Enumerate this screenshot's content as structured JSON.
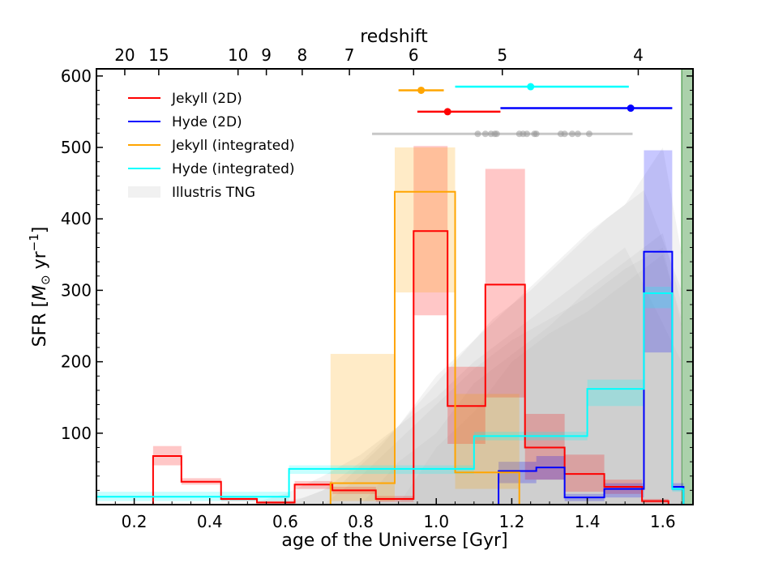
{
  "chart_data": {
    "type": "step",
    "title": "",
    "xlabel": "age of the Universe [Gyr]",
    "top_xlabel": "redshift",
    "ylabel": {
      "prefix": "SFR [",
      "unit_symbol": "M",
      "unit_sub": "⊙",
      "unit_rest": " yr",
      "unit_exp": "−1",
      "suffix": "]"
    },
    "xlim": [
      0.1,
      1.68
    ],
    "ylim": [
      0,
      610
    ],
    "x_ticks": [
      0.2,
      0.4,
      0.6,
      0.8,
      1.0,
      1.2,
      1.4,
      1.6
    ],
    "x_tick_labels": [
      "0.2",
      "0.4",
      "0.6",
      "0.8",
      "1.0",
      "1.2",
      "1.4",
      "1.6"
    ],
    "y_ticks": [
      100,
      200,
      300,
      400,
      500,
      600
    ],
    "y_tick_labels": [
      "100",
      "200",
      "300",
      "400",
      "500",
      "600"
    ],
    "redshift_ticks": [
      {
        "label": "20",
        "age": 0.175
      },
      {
        "label": "15",
        "age": 0.265
      },
      {
        "label": "10",
        "age": 0.475
      },
      {
        "label": "9",
        "age": 0.55
      },
      {
        "label": "8",
        "age": 0.645
      },
      {
        "label": "7",
        "age": 0.77
      },
      {
        "label": "6",
        "age": 0.94
      },
      {
        "label": "5",
        "age": 1.175
      },
      {
        "label": "4",
        "age": 1.535
      }
    ],
    "observed_shading": {
      "x_range": [
        1.65,
        1.68
      ],
      "color": "#2e8b2e"
    },
    "legend": [
      {
        "label": "Jekyll (2D)",
        "color": "#ff0000",
        "kind": "line"
      },
      {
        "label": "Hyde (2D)",
        "color": "#0000ff",
        "kind": "line"
      },
      {
        "label": "Jekyll (integrated)",
        "color": "#ffa500",
        "kind": "line"
      },
      {
        "label": "Hyde (integrated)",
        "color": "#00ffff",
        "kind": "line"
      },
      {
        "label": "Illustris TNG",
        "color": "#dddddd",
        "kind": "patch"
      }
    ],
    "series": [
      {
        "name": "Jekyll (2D)",
        "color": "#ff0000",
        "bins": [
          {
            "x0": 0.25,
            "x1": 0.325,
            "y": 68,
            "lo": 55,
            "hi": 82
          },
          {
            "x0": 0.325,
            "x1": 0.43,
            "y": 32,
            "lo": 28,
            "hi": 37
          },
          {
            "x0": 0.43,
            "x1": 0.525,
            "y": 8,
            "lo": 5,
            "hi": 12
          },
          {
            "x0": 0.525,
            "x1": 0.625,
            "y": 3,
            "lo": 1,
            "hi": 5
          },
          {
            "x0": 0.625,
            "x1": 0.725,
            "y": 28,
            "lo": 22,
            "hi": 33
          },
          {
            "x0": 0.725,
            "x1": 0.84,
            "y": 20,
            "lo": 15,
            "hi": 25
          },
          {
            "x0": 0.84,
            "x1": 0.94,
            "y": 8,
            "lo": 4,
            "hi": 12
          },
          {
            "x0": 0.94,
            "x1": 1.03,
            "y": 383,
            "lo": 265,
            "hi": 502
          },
          {
            "x0": 1.03,
            "x1": 1.13,
            "y": 138,
            "lo": 85,
            "hi": 193
          },
          {
            "x0": 1.13,
            "x1": 1.235,
            "y": 308,
            "lo": 150,
            "hi": 470
          },
          {
            "x0": 1.235,
            "x1": 1.34,
            "y": 80,
            "lo": 35,
            "hi": 127
          },
          {
            "x0": 1.34,
            "x1": 1.445,
            "y": 43,
            "lo": 18,
            "hi": 70
          },
          {
            "x0": 1.445,
            "x1": 1.545,
            "y": 25,
            "lo": 15,
            "hi": 35
          },
          {
            "x0": 1.545,
            "x1": 1.615,
            "y": 5,
            "lo": 2,
            "hi": 8
          }
        ]
      },
      {
        "name": "Hyde (2D)",
        "color": "#0000ff",
        "bins": [
          {
            "x0": 1.165,
            "x1": 1.265,
            "y": 47,
            "lo": 30,
            "hi": 60
          },
          {
            "x0": 1.265,
            "x1": 1.34,
            "y": 52,
            "lo": 35,
            "hi": 68
          },
          {
            "x0": 1.34,
            "x1": 1.445,
            "y": 10,
            "lo": 5,
            "hi": 15
          },
          {
            "x0": 1.445,
            "x1": 1.55,
            "y": 22,
            "lo": 10,
            "hi": 30
          },
          {
            "x0": 1.55,
            "x1": 1.625,
            "y": 354,
            "lo": 213,
            "hi": 496
          },
          {
            "x0": 1.625,
            "x1": 1.655,
            "y": 25,
            "lo": 20,
            "hi": 30
          }
        ]
      },
      {
        "name": "Jekyll (integrated)",
        "color": "#ffa500",
        "bins": [
          {
            "x0": 0.72,
            "x1": 0.89,
            "y": 30,
            "lo": 5,
            "hi": 211
          },
          {
            "x0": 0.89,
            "x1": 1.05,
            "y": 438,
            "lo": 297,
            "hi": 500
          },
          {
            "x0": 1.05,
            "x1": 1.22,
            "y": 45,
            "lo": 22,
            "hi": 155
          },
          {
            "x0": 1.22,
            "x1": 1.225,
            "y": 0,
            "lo": 0,
            "hi": 0
          }
        ]
      },
      {
        "name": "Hyde (integrated)",
        "color": "#00ffff",
        "bins": [
          {
            "x0": 0.1,
            "x1": 0.61,
            "y": 11,
            "lo": 5,
            "hi": 18
          },
          {
            "x0": 0.61,
            "x1": 1.1,
            "y": 50,
            "lo": 43,
            "hi": 55
          },
          {
            "x0": 1.1,
            "x1": 1.4,
            "y": 96,
            "lo": 90,
            "hi": 102
          },
          {
            "x0": 1.4,
            "x1": 1.55,
            "y": 162,
            "lo": 138,
            "hi": 175
          },
          {
            "x0": 1.55,
            "x1": 1.625,
            "y": 296,
            "lo": 275,
            "hi": 305
          },
          {
            "x0": 1.625,
            "x1": 1.655,
            "y": 22,
            "lo": 18,
            "hi": 25
          }
        ]
      }
    ],
    "tng_envelopes": [
      {
        "x": [
          0.55,
          0.65,
          0.75,
          0.85,
          0.95,
          1.05,
          1.15,
          1.25,
          1.35,
          1.45,
          1.55,
          1.65
        ],
        "y": [
          0,
          10,
          30,
          80,
          140,
          200,
          260,
          300,
          350,
          400,
          440,
          300
        ]
      },
      {
        "x": [
          0.6,
          0.7,
          0.8,
          0.9,
          1.0,
          1.1,
          1.2,
          1.3,
          1.4,
          1.5,
          1.6,
          1.65
        ],
        "y": [
          0,
          20,
          60,
          110,
          180,
          230,
          280,
          330,
          380,
          420,
          500,
          350
        ]
      },
      {
        "x": [
          0.7,
          0.8,
          0.9,
          1.0,
          1.1,
          1.2,
          1.3,
          1.4,
          1.5,
          1.6,
          1.65
        ],
        "y": [
          0,
          40,
          90,
          140,
          190,
          230,
          260,
          290,
          330,
          360,
          250
        ]
      },
      {
        "x": [
          0.5,
          0.6,
          0.7,
          0.8,
          0.9,
          1.0,
          1.1,
          1.2,
          1.3,
          1.4,
          1.5,
          1.65
        ],
        "y": [
          0,
          15,
          40,
          70,
          110,
          150,
          200,
          240,
          280,
          320,
          360,
          200
        ]
      },
      {
        "x": [
          0.8,
          0.9,
          1.0,
          1.1,
          1.2,
          1.3,
          1.4,
          1.5,
          1.6,
          1.65
        ],
        "y": [
          0,
          60,
          100,
          170,
          210,
          250,
          300,
          340,
          380,
          280
        ]
      },
      {
        "x": [
          0.9,
          1.0,
          1.1,
          1.2,
          1.3,
          1.4,
          1.5,
          1.6,
          1.65
        ],
        "y": [
          0,
          80,
          130,
          200,
          240,
          270,
          310,
          350,
          260
        ]
      }
    ],
    "formation_markers": [
      {
        "name": "Jekyll (integrated)",
        "color": "#ffa500",
        "y": 580,
        "x": 0.96,
        "xmin": 0.9,
        "xmax": 1.02
      },
      {
        "name": "Hyde (integrated)",
        "color": "#00ffff",
        "y": 585,
        "x": 1.25,
        "xmin": 1.05,
        "xmax": 1.51
      },
      {
        "name": "Jekyll (2D)",
        "color": "#ff0000",
        "y": 550,
        "x": 1.03,
        "xmin": 0.95,
        "xmax": 1.17
      },
      {
        "name": "Hyde (2D)",
        "color": "#0000ff",
        "y": 555,
        "x": 1.515,
        "xmin": 1.17,
        "xmax": 1.625
      },
      {
        "name": "Illustris TNG",
        "color": "#999999",
        "y": 519,
        "xmin": 0.83,
        "xmax": 1.52,
        "points": [
          1.11,
          1.13,
          1.145,
          1.155,
          1.16,
          1.22,
          1.23,
          1.24,
          1.26,
          1.265,
          1.33,
          1.34,
          1.36,
          1.375,
          1.405
        ]
      }
    ]
  }
}
